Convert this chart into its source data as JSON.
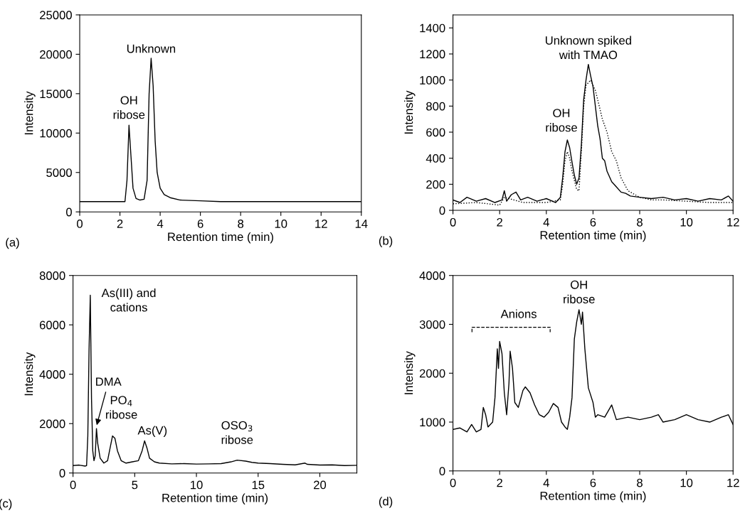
{
  "chart_data": [
    {
      "type": "line",
      "xlabel": "Retention time (min)",
      "ylabel": "Intensity",
      "xlim": [
        0,
        14
      ],
      "ylim": [
        0,
        25000
      ],
      "xticks": [
        0,
        2,
        4,
        6,
        8,
        10,
        12,
        14
      ],
      "yticks": [
        0,
        5000,
        10000,
        15000,
        20000,
        25000
      ],
      "grid": false,
      "legend": false,
      "marker": "none",
      "series": [
        {
          "color": "#000000",
          "line_style": "solid",
          "x": [
            0,
            0.5,
            1,
            1.5,
            2,
            2.25,
            2.35,
            2.45,
            2.55,
            2.65,
            2.8,
            3.0,
            3.2,
            3.35,
            3.45,
            3.55,
            3.65,
            3.75,
            3.85,
            4.0,
            4.2,
            4.5,
            5,
            6,
            7,
            8,
            9,
            10,
            11,
            12,
            13,
            14
          ],
          "values": [
            1300,
            1300,
            1300,
            1300,
            1300,
            1300,
            4000,
            11000,
            7000,
            3000,
            1700,
            1500,
            1600,
            4000,
            15000,
            19500,
            16000,
            9000,
            5000,
            3000,
            2200,
            1800,
            1500,
            1400,
            1300,
            1300,
            1300,
            1300,
            1300,
            1300,
            1300,
            1300
          ]
        }
      ],
      "annotations": [
        "(a)",
        {
          "text": "OH\nribose",
          "x": 2.45,
          "y": 11000
        },
        {
          "text": "Unknown",
          "x": 3.55,
          "y": 19500
        }
      ]
    },
    {
      "type": "line",
      "xlabel": "Retention time (min)",
      "ylabel": "Intensity",
      "xlim": [
        0,
        12
      ],
      "ylim": [
        0,
        1500
      ],
      "xticks": [
        0,
        2,
        4,
        6,
        8,
        10,
        12
      ],
      "yticks": [
        0,
        200,
        400,
        600,
        800,
        1000,
        1200,
        1400
      ],
      "grid": false,
      "legend": false,
      "marker": "none",
      "series": [
        {
          "color": "#000000",
          "line_style": "solid",
          "x": [
            0,
            0.3,
            0.6,
            1,
            1.4,
            1.8,
            2.1,
            2.2,
            2.3,
            2.5,
            2.7,
            2.9,
            3.2,
            3.6,
            4,
            4.4,
            4.6,
            4.7,
            4.8,
            4.9,
            5.0,
            5.1,
            5.2,
            5.3,
            5.4,
            5.5,
            5.6,
            5.7,
            5.8,
            5.9,
            6.0,
            6.1,
            6.2,
            6.3,
            6.4,
            6.5,
            6.6,
            6.8,
            7.0,
            7.2,
            7.4,
            7.6,
            8,
            8.5,
            9,
            9.5,
            10,
            10.5,
            11,
            11.5,
            11.8,
            12
          ],
          "values": [
            80,
            60,
            100,
            70,
            90,
            60,
            80,
            150,
            70,
            120,
            140,
            80,
            100,
            70,
            90,
            60,
            100,
            250,
            450,
            540,
            480,
            370,
            270,
            200,
            250,
            500,
            850,
            1000,
            1120,
            1030,
            950,
            800,
            650,
            550,
            400,
            380,
            300,
            220,
            180,
            140,
            130,
            110,
            100,
            90,
            100,
            80,
            90,
            70,
            90,
            80,
            110,
            70
          ]
        },
        {
          "color": "#000000",
          "line_style": "dotted",
          "x": [
            0,
            1,
            2,
            2.2,
            3,
            4,
            4.6,
            4.7,
            4.8,
            4.9,
            5.0,
            5.1,
            5.3,
            5.4,
            5.5,
            5.6,
            5.7,
            5.8,
            5.9,
            6.0,
            6.1,
            6.2,
            6.4,
            6.6,
            6.8,
            7.0,
            7.2,
            7.5,
            7.8,
            8,
            8.5,
            9,
            10,
            11,
            12
          ],
          "values": [
            50,
            60,
            40,
            100,
            60,
            60,
            80,
            200,
            380,
            450,
            400,
            300,
            160,
            150,
            450,
            800,
            960,
            980,
            1000,
            960,
            920,
            850,
            700,
            600,
            450,
            380,
            250,
            150,
            120,
            100,
            80,
            80,
            70,
            60,
            60
          ]
        }
      ],
      "annotations": [
        "(b)",
        {
          "text": "OH\nribose",
          "x": 4.9,
          "y": 540
        },
        {
          "text": "Unknown spiked\nwith TMAO",
          "x": 5.8,
          "y": 1120
        }
      ]
    },
    {
      "type": "line",
      "xlabel": "Retention time (min)",
      "ylabel": "Intensity",
      "xlim": [
        0,
        23
      ],
      "ylim": [
        0,
        8000
      ],
      "xticks": [
        0,
        5,
        10,
        15,
        20
      ],
      "yticks": [
        0,
        2000,
        4000,
        6000,
        8000
      ],
      "grid": false,
      "legend": false,
      "marker": "none",
      "series": [
        {
          "color": "#000000",
          "line_style": "solid",
          "x": [
            0,
            0.5,
            1.0,
            1.1,
            1.2,
            1.3,
            1.4,
            1.5,
            1.6,
            1.7,
            1.8,
            1.9,
            2.0,
            2.2,
            2.5,
            2.8,
            3.0,
            3.2,
            3.4,
            3.6,
            3.9,
            4.3,
            4.8,
            5.3,
            5.6,
            5.8,
            6.0,
            6.2,
            6.6,
            7,
            8,
            9,
            10,
            11,
            12,
            12.8,
            13.3,
            14,
            14.5,
            15,
            16,
            17,
            18,
            18.8,
            19,
            20,
            21,
            22,
            23
          ],
          "values": [
            300,
            320,
            280,
            300,
            1500,
            5000,
            7200,
            3000,
            900,
            500,
            700,
            1800,
            1200,
            600,
            400,
            500,
            1000,
            1500,
            1400,
            900,
            500,
            400,
            450,
            500,
            900,
            1300,
            1000,
            600,
            450,
            400,
            370,
            380,
            360,
            370,
            380,
            450,
            520,
            480,
            430,
            400,
            380,
            350,
            330,
            400,
            350,
            320,
            330,
            300,
            310
          ]
        }
      ],
      "annotations": [
        "(c)",
        {
          "text": "As(III) and\ncations",
          "x": 1.4,
          "y": 7200
        },
        {
          "text": "DMA",
          "x": 1.9,
          "y": 1900
        },
        {
          "text": "PO$_{4}$\nribose",
          "x": 3.2,
          "y": 1500
        },
        {
          "text": "As(V)",
          "x": 5.8,
          "y": 1300
        },
        {
          "text": "OSO$_{3}$\nribose",
          "x": 13.3,
          "y": 520
        }
      ]
    },
    {
      "type": "line",
      "xlabel": "Retention time (min)",
      "ylabel": "Intensity",
      "xlim": [
        0,
        12
      ],
      "ylim": [
        0,
        4000
      ],
      "xticks": [
        0,
        2,
        4,
        6,
        8,
        10,
        12
      ],
      "yticks": [
        0,
        1000,
        2000,
        3000,
        4000
      ],
      "grid": false,
      "legend": false,
      "marker": "none",
      "series": [
        {
          "color": "#000000",
          "line_style": "solid",
          "x": [
            0,
            0.3,
            0.6,
            0.8,
            1,
            1.2,
            1.3,
            1.4,
            1.5,
            1.7,
            1.8,
            1.9,
            1.95,
            2.0,
            2.1,
            2.2,
            2.3,
            2.4,
            2.45,
            2.55,
            2.65,
            2.8,
            3.0,
            3.1,
            3.3,
            3.5,
            3.7,
            3.9,
            4.1,
            4.3,
            4.5,
            4.65,
            4.8,
            4.9,
            5.0,
            5.1,
            5.2,
            5.3,
            5.4,
            5.5,
            5.55,
            5.65,
            5.8,
            6.0,
            6.1,
            6.2,
            6.5,
            6.8,
            7,
            7.5,
            8,
            8.5,
            8.8,
            9,
            9.5,
            10,
            10.5,
            11,
            11.5,
            11.8,
            12
          ],
          "values": [
            850,
            880,
            800,
            950,
            800,
            850,
            1300,
            1150,
            900,
            1000,
            1500,
            2500,
            2100,
            2650,
            2400,
            1600,
            1150,
            1800,
            2450,
            2100,
            1400,
            1300,
            1650,
            1720,
            1600,
            1350,
            1150,
            1100,
            1200,
            1380,
            1300,
            1000,
            900,
            850,
            1100,
            1500,
            2700,
            3050,
            3300,
            3000,
            3250,
            2500,
            1700,
            1400,
            1100,
            1150,
            1100,
            1350,
            1050,
            1100,
            1050,
            1100,
            1150,
            1000,
            1050,
            1150,
            1050,
            1000,
            1100,
            1150,
            950
          ]
        }
      ],
      "annotations": [
        "(d)",
        "Anions",
        {
          "text": "OH\nribose",
          "x": 5.4,
          "y": 3300
        }
      ]
    }
  ]
}
